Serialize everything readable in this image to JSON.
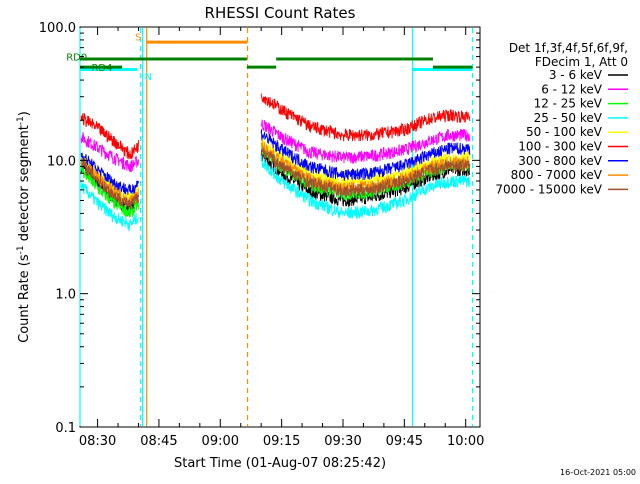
{
  "chart_data": {
    "type": "line",
    "title": "RHESSI Count Rates",
    "xlabel": "Start Time (01-Aug-07 08:25:42)",
    "ylabel": "Count Rate (s",
    "ylabel_sup": "-1",
    "ylabel_tail": " detector segment",
    "ylabel_sup2": "-1",
    "ylabel_end": ")",
    "y_scale": "log",
    "ylim": [
      0.1,
      100.0
    ],
    "y_ticks": [
      {
        "value": 100,
        "label": "100.0"
      },
      {
        "value": 10,
        "label": "10.0"
      },
      {
        "value": 1,
        "label": "1.0"
      },
      {
        "value": 0.1,
        "label": "0.1"
      }
    ],
    "xlim": [
      "08:25:42",
      "10:03:30"
    ],
    "x_ticks": [
      {
        "value": "08:30",
        "label": "08:30"
      },
      {
        "value": "08:45",
        "label": "08:45"
      },
      {
        "value": "09:00",
        "label": "09:00"
      },
      {
        "value": "09:15",
        "label": "09:15"
      },
      {
        "value": "09:30",
        "label": "09:30"
      },
      {
        "value": "09:45",
        "label": "09:45"
      },
      {
        "value": "10:00",
        "label": "10:00"
      }
    ],
    "legend_header": [
      "Det 1f,3f,4f,5f,6f,9f,",
      "FDecim 1, Att 0"
    ],
    "legend_position": "right",
    "series": [
      {
        "name": "3 - 6 keV",
        "color": "#000000",
        "seg1": [
          [
            "08:26",
            9.0
          ],
          [
            "08:30",
            6.8
          ],
          [
            "08:34",
            5.2
          ],
          [
            "08:38",
            4.2
          ],
          [
            "08:40",
            5.2
          ]
        ],
        "seg2": [
          [
            "09:10",
            11.0
          ],
          [
            "09:15",
            8.0
          ],
          [
            "09:22",
            5.8
          ],
          [
            "09:30",
            5.0
          ],
          [
            "09:37",
            5.3
          ],
          [
            "09:45",
            6.2
          ],
          [
            "09:51",
            7.5
          ],
          [
            "09:56",
            8.5
          ],
          [
            "10:01",
            8.5
          ]
        ]
      },
      {
        "name": "6 - 12 keV",
        "color": "#ff00ff",
        "seg1": [
          [
            "08:26",
            15.0
          ],
          [
            "08:30",
            12.5
          ],
          [
            "08:34",
            10.5
          ],
          [
            "08:38",
            9.0
          ],
          [
            "08:40",
            10.0
          ]
        ],
        "seg2": [
          [
            "09:10",
            19.0
          ],
          [
            "09:15",
            15.0
          ],
          [
            "09:22",
            11.5
          ],
          [
            "09:30",
            10.5
          ],
          [
            "09:37",
            10.8
          ],
          [
            "09:45",
            12.0
          ],
          [
            "09:51",
            14.0
          ],
          [
            "09:56",
            15.5
          ],
          [
            "10:01",
            15.5
          ]
        ]
      },
      {
        "name": "12 - 25 keV",
        "color": "#00ff00",
        "seg1": [
          [
            "08:26",
            8.5
          ],
          [
            "08:30",
            6.2
          ],
          [
            "08:34",
            4.8
          ],
          [
            "08:38",
            4.0
          ],
          [
            "08:40",
            4.8
          ]
        ],
        "seg2": [
          [
            "09:10",
            12.5
          ],
          [
            "09:15",
            9.0
          ],
          [
            "09:22",
            6.5
          ],
          [
            "09:30",
            5.6
          ],
          [
            "09:37",
            5.8
          ],
          [
            "09:45",
            6.8
          ],
          [
            "09:51",
            8.2
          ],
          [
            "09:56",
            9.2
          ],
          [
            "10:01",
            9.2
          ]
        ]
      },
      {
        "name": "25 - 50 keV",
        "color": "#00ffff",
        "seg1": [
          [
            "08:26",
            6.5
          ],
          [
            "08:30",
            4.8
          ],
          [
            "08:34",
            3.8
          ],
          [
            "08:38",
            3.3
          ],
          [
            "08:40",
            3.8
          ]
        ],
        "seg2": [
          [
            "09:10",
            10.0
          ],
          [
            "09:15",
            7.0
          ],
          [
            "09:22",
            5.0
          ],
          [
            "09:30",
            4.0
          ],
          [
            "09:37",
            4.2
          ],
          [
            "09:45",
            5.0
          ],
          [
            "09:51",
            6.3
          ],
          [
            "09:56",
            7.0
          ],
          [
            "10:01",
            7.0
          ]
        ]
      },
      {
        "name": "50 - 100 keV",
        "color": "#ffff00",
        "seg1": [
          [
            "08:26",
            10.5
          ],
          [
            "08:30",
            8.0
          ],
          [
            "08:34",
            6.2
          ],
          [
            "08:38",
            5.2
          ],
          [
            "08:40",
            6.0
          ]
        ],
        "seg2": [
          [
            "09:10",
            14.0
          ],
          [
            "09:15",
            10.5
          ],
          [
            "09:22",
            7.8
          ],
          [
            "09:30",
            6.8
          ],
          [
            "09:37",
            7.0
          ],
          [
            "09:45",
            8.0
          ],
          [
            "09:51",
            9.5
          ],
          [
            "09:56",
            10.5
          ],
          [
            "10:01",
            10.5
          ]
        ]
      },
      {
        "name": "100 - 300 keV",
        "color": "#ff0000",
        "seg1": [
          [
            "08:26",
            21.0
          ],
          [
            "08:30",
            17.5
          ],
          [
            "08:34",
            14.0
          ],
          [
            "08:38",
            11.0
          ],
          [
            "08:40",
            13.0
          ]
        ],
        "seg2": [
          [
            "09:10",
            31.0
          ],
          [
            "09:15",
            24.0
          ],
          [
            "09:22",
            18.0
          ],
          [
            "09:30",
            15.5
          ],
          [
            "09:37",
            15.5
          ],
          [
            "09:45",
            17.0
          ],
          [
            "09:51",
            20.5
          ],
          [
            "09:56",
            22.0
          ],
          [
            "10:01",
            21.0
          ]
        ]
      },
      {
        "name": "300 - 800 keV",
        "color": "#0000ff",
        "seg1": [
          [
            "08:26",
            11.0
          ],
          [
            "08:30",
            8.5
          ],
          [
            "08:34",
            6.8
          ],
          [
            "08:38",
            5.9
          ],
          [
            "08:40",
            6.8
          ]
        ],
        "seg2": [
          [
            "09:10",
            16.0
          ],
          [
            "09:15",
            12.0
          ],
          [
            "09:22",
            9.0
          ],
          [
            "09:30",
            7.8
          ],
          [
            "09:37",
            8.0
          ],
          [
            "09:45",
            9.2
          ],
          [
            "09:51",
            11.0
          ],
          [
            "09:56",
            12.3
          ],
          [
            "10:01",
            12.3
          ]
        ]
      },
      {
        "name": "800 - 7000 keV",
        "color": "#ff8c00",
        "seg1": [
          [
            "08:26",
            10.0
          ],
          [
            "08:30",
            7.5
          ],
          [
            "08:34",
            5.8
          ],
          [
            "08:38",
            4.9
          ],
          [
            "08:40",
            5.6
          ]
        ],
        "seg2": [
          [
            "09:10",
            13.0
          ],
          [
            "09:15",
            9.8
          ],
          [
            "09:22",
            7.2
          ],
          [
            "09:30",
            6.2
          ],
          [
            "09:37",
            6.4
          ],
          [
            "09:45",
            7.4
          ],
          [
            "09:51",
            8.8
          ],
          [
            "09:56",
            9.7
          ],
          [
            "10:01",
            9.7
          ]
        ]
      },
      {
        "name": "7000 - 15000 keV",
        "color": "#a0522d",
        "seg1": [
          [
            "08:26",
            9.5
          ],
          [
            "08:30",
            7.2
          ],
          [
            "08:34",
            5.5
          ],
          [
            "08:38",
            4.6
          ],
          [
            "08:40",
            5.4
          ]
        ],
        "seg2": [
          [
            "09:10",
            12.0
          ],
          [
            "09:15",
            9.0
          ],
          [
            "09:22",
            6.8
          ],
          [
            "09:30",
            5.9
          ],
          [
            "09:37",
            6.1
          ],
          [
            "09:45",
            7.0
          ],
          [
            "09:51",
            8.4
          ],
          [
            "09:56",
            9.2
          ],
          [
            "10:01",
            9.2
          ]
        ]
      }
    ],
    "markers": [
      {
        "time": "08:25:42",
        "color": "#00ffff",
        "dashed": false
      },
      {
        "time": "08:40:30",
        "color": "#00ffff",
        "dashed": true
      },
      {
        "time": "08:41:00",
        "color": "#00ffff",
        "dashed": false
      },
      {
        "time": "08:42:00",
        "color": "#ff8c00",
        "dashed": false
      },
      {
        "time": "09:06:40",
        "color": "#ff8c00",
        "dashed": true
      },
      {
        "time": "09:47:00",
        "color": "#00ffff",
        "dashed": false
      },
      {
        "time": "10:01:40",
        "color": "#00ffff",
        "dashed": true
      }
    ],
    "bars": [
      {
        "label": "S",
        "color": "#ff8c00",
        "y": 77,
        "start": "08:42:00",
        "end": "09:06:40",
        "label_time": "08:39:10",
        "label_y": 85
      },
      {
        "label": "N",
        "color": "#00ffff",
        "y": 48,
        "start": "08:25:42",
        "end": "08:39:40",
        "label_time": "08:41:30",
        "label_y": 43
      },
      {
        "label": "",
        "color": "#00ffff",
        "y": 48,
        "start": "09:47:00",
        "end": "10:01:40"
      },
      {
        "label": "RD0",
        "color": "#008000",
        "y": 57.5,
        "start": "08:25:42",
        "end": "09:06:30",
        "label_time": "08:22:20",
        "label_y": 60
      },
      {
        "label": "",
        "color": "#008000",
        "y": 50,
        "start": "09:06:30",
        "end": "09:13:40"
      },
      {
        "label": "",
        "color": "#008000",
        "y": 57.5,
        "start": "09:13:40",
        "end": "09:52:00"
      },
      {
        "label": "",
        "color": "#008000",
        "y": 50,
        "start": "09:52:00",
        "end": "10:01:40"
      },
      {
        "label": "RD4",
        "color": "#008000",
        "y": 50,
        "start": "08:25:42",
        "end": "08:36:00",
        "label_time": "08:28:30",
        "label_y": 50
      }
    ],
    "footer": "16-Oct-2021 05:00"
  }
}
